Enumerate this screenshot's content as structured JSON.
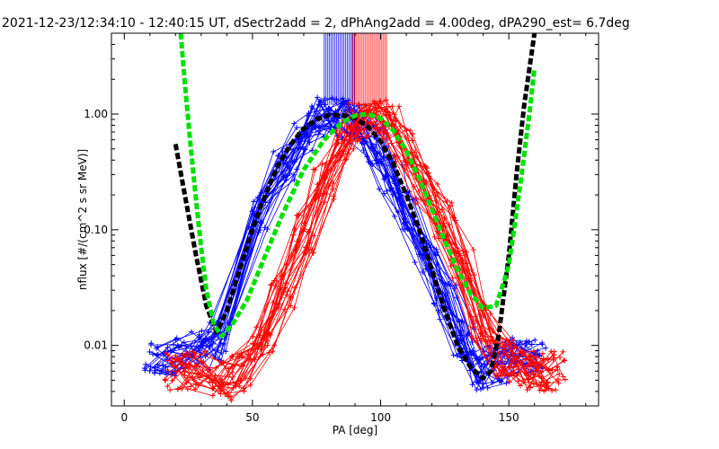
{
  "chart_data": {
    "type": "line",
    "title": "2021-12-23/12:34:10 - 12:40:15 UT, dSectr2add = 2, dPhAng2add = 4.00deg, dPA290_est=    6.7deg",
    "xlabel": "PA [deg]",
    "ylabel": "nflux [#/(cm^2 s sr MeV)]",
    "xlim": [
      -5,
      185
    ],
    "ylim": [
      0.003,
      5
    ],
    "yscale": "log",
    "x_ticks": [
      0,
      50,
      100,
      150
    ],
    "x_tick_labels": [
      "0",
      "50",
      "100",
      "150"
    ],
    "y_ticks": [
      0.01,
      0.1,
      1.0
    ],
    "y_tick_labels": [
      "0.01",
      "0.10",
      "1.00"
    ],
    "grid": false,
    "colors": {
      "blue": "#0000ff",
      "red": "#ff0000",
      "black": "#000000",
      "green": "#00e000"
    },
    "series": [
      {
        "color": "blue",
        "style": "thin-lines-plus-markers",
        "x": [
          12,
          20,
          30,
          37,
          52,
          63,
          70,
          76,
          82,
          87,
          92,
          98,
          104,
          110,
          118,
          125,
          132,
          138,
          145,
          152,
          160
        ],
        "y": [
          0.008,
          0.008,
          0.009,
          0.011,
          0.14,
          0.4,
          0.7,
          0.95,
          0.95,
          0.9,
          0.8,
          0.55,
          0.3,
          0.15,
          0.06,
          0.025,
          0.011,
          0.006,
          0.007,
          0.008,
          0.008
        ]
      },
      {
        "color": "red",
        "style": "thin-lines-plus-markers",
        "x": [
          20,
          28,
          38,
          45,
          54,
          62,
          70,
          78,
          86,
          92,
          98,
          104,
          110,
          118,
          125,
          132,
          140,
          148,
          155,
          162,
          168
        ],
        "y": [
          0.006,
          0.006,
          0.005,
          0.006,
          0.01,
          0.03,
          0.09,
          0.25,
          0.6,
          0.85,
          0.9,
          0.8,
          0.5,
          0.25,
          0.12,
          0.05,
          0.015,
          0.008,
          0.006,
          0.006,
          0.006
        ]
      },
      {
        "color": "black",
        "style": "thick-dashed-fit",
        "x": [
          20,
          24,
          28,
          32,
          36,
          40,
          45,
          50,
          55,
          60,
          65,
          70,
          75,
          80,
          85,
          90,
          95,
          100,
          105,
          110,
          115,
          120,
          125,
          130,
          135,
          140,
          143,
          146,
          150,
          153,
          156,
          160
        ],
        "y": [
          0.55,
          0.18,
          0.06,
          0.022,
          0.013,
          0.02,
          0.045,
          0.1,
          0.2,
          0.36,
          0.55,
          0.75,
          0.9,
          0.98,
          0.98,
          0.92,
          0.78,
          0.58,
          0.37,
          0.2,
          0.1,
          0.045,
          0.02,
          0.01,
          0.0065,
          0.0052,
          0.006,
          0.012,
          0.06,
          0.3,
          1.2,
          5.0
        ]
      },
      {
        "color": "green",
        "style": "thick-dashed-fit",
        "x": [
          22,
          24,
          26,
          28,
          30,
          32,
          35,
          38,
          42,
          48,
          55,
          62,
          70,
          78,
          85,
          90,
          95,
          100,
          105,
          110,
          115,
          120,
          125,
          130,
          135,
          140,
          145,
          148,
          150,
          152,
          155,
          158,
          160
        ],
        "y": [
          5.0,
          1.5,
          0.5,
          0.18,
          0.07,
          0.03,
          0.015,
          0.012,
          0.015,
          0.025,
          0.06,
          0.14,
          0.33,
          0.6,
          0.85,
          0.97,
          1.0,
          0.92,
          0.72,
          0.48,
          0.28,
          0.15,
          0.08,
          0.045,
          0.028,
          0.021,
          0.022,
          0.035,
          0.05,
          0.1,
          0.3,
          1.0,
          2.5
        ]
      }
    ]
  }
}
